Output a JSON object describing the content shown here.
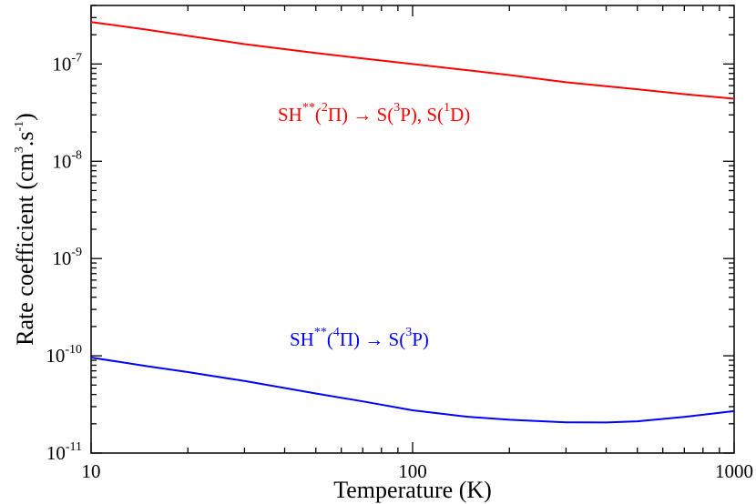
{
  "chart_data": {
    "type": "line",
    "xlabel": "Temperature (K)",
    "ylabel": {
      "main": "Rate coefficient (cm",
      "sup1": "3",
      "mid": ".s",
      "sup2": "-1",
      "end": ")"
    },
    "x_scale": "log",
    "y_scale": "log",
    "xlim": [
      10,
      1000
    ],
    "ylim": [
      1e-11,
      4e-07
    ],
    "grid": false,
    "x_ticks": [
      {
        "value": 10,
        "label": "10"
      },
      {
        "value": 100,
        "label": "100"
      },
      {
        "value": 1000,
        "label": "1000"
      }
    ],
    "y_ticks": [
      {
        "value": 1e-07,
        "base": "10",
        "exp": "-7"
      },
      {
        "value": 1e-08,
        "base": "10",
        "exp": "-8"
      },
      {
        "value": 1e-09,
        "base": "10",
        "exp": "-9"
      },
      {
        "value": 1e-10,
        "base": "10",
        "exp": "-10"
      },
      {
        "value": 1e-11,
        "base": "10",
        "exp": "-11"
      }
    ],
    "series": [
      {
        "color": "#ff0000",
        "x": [
          10,
          15,
          20,
          30,
          50,
          70,
          100,
          150,
          200,
          300,
          500,
          700,
          1000
        ],
        "y": [
          2.7e-07,
          2.25e-07,
          1.95e-07,
          1.6e-07,
          1.3e-07,
          1.14e-07,
          1e-07,
          8.6e-08,
          7.7e-08,
          6.5e-08,
          5.5e-08,
          4.9e-08,
          4.4e-08
        ]
      },
      {
        "color": "#0000ff",
        "x": [
          10,
          15,
          20,
          30,
          50,
          70,
          100,
          150,
          200,
          300,
          400,
          500,
          700,
          1000
        ],
        "y": [
          9.6e-11,
          7.8e-11,
          6.8e-11,
          5.5e-11,
          4.1e-11,
          3.4e-11,
          2.75e-11,
          2.35e-11,
          2.2e-11,
          2.07e-11,
          2.06e-11,
          2.12e-11,
          2.35e-11,
          2.7e-11
        ]
      }
    ],
    "annotations": [
      {
        "color": "#ff0000",
        "parts": [
          {
            "t": "SH",
            "s": "n"
          },
          {
            "t": "**",
            "s": "sup"
          },
          {
            "t": "(",
            "s": "n"
          },
          {
            "t": "2",
            "s": "sup"
          },
          {
            "t": "Π) → S(",
            "s": "n"
          },
          {
            "t": "3",
            "s": "sup"
          },
          {
            "t": "P), S(",
            "s": "n"
          },
          {
            "t": "1",
            "s": "sup"
          },
          {
            "t": "D)",
            "s": "n"
          }
        ]
      },
      {
        "color": "#0000ff",
        "parts": [
          {
            "t": "SH",
            "s": "n"
          },
          {
            "t": "**",
            "s": "sup"
          },
          {
            "t": "(",
            "s": "n"
          },
          {
            "t": "4",
            "s": "sup"
          },
          {
            "t": "Π) → S(",
            "s": "n"
          },
          {
            "t": "3",
            "s": "sup"
          },
          {
            "t": "P)",
            "s": "n"
          }
        ]
      }
    ]
  }
}
